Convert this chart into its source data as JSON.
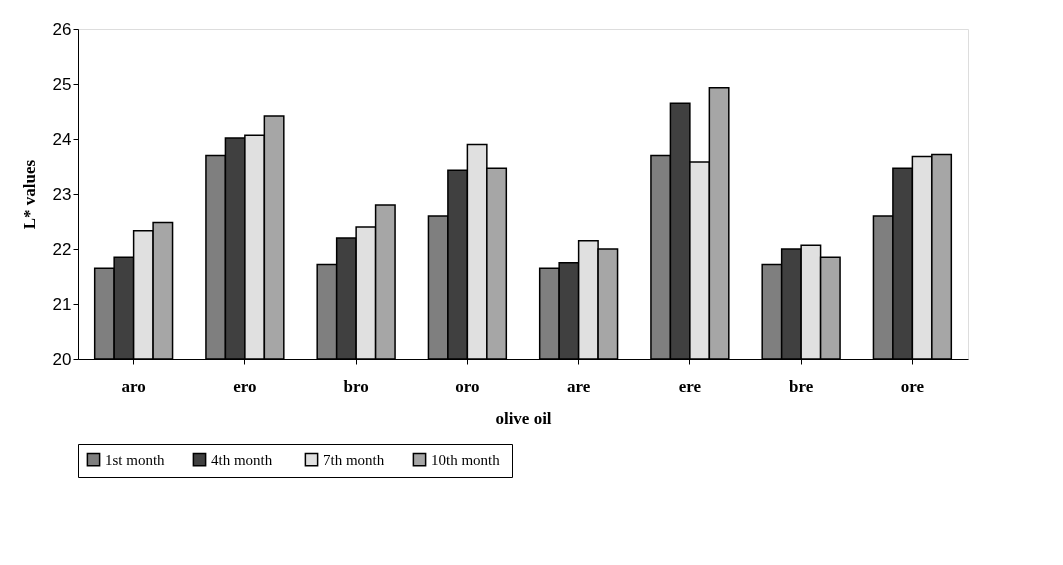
{
  "chart_data": {
    "type": "bar",
    "xlabel": "olive oil",
    "ylabel": "L* values",
    "categories": [
      "aro",
      "ero",
      "bro",
      "oro",
      "are",
      "ere",
      "bre",
      "ore"
    ],
    "series": [
      {
        "name": "1st month",
        "color": "#7f7f7f",
        "values": [
          21.65,
          23.7,
          21.72,
          22.6,
          21.65,
          23.7,
          21.72,
          22.6
        ]
      },
      {
        "name": "4th  month",
        "color": "#404040",
        "values": [
          21.85,
          24.02,
          22.2,
          23.43,
          21.75,
          24.65,
          22.0,
          23.47
        ]
      },
      {
        "name": "7th month",
        "color": "#e0e0e0",
        "values": [
          22.33,
          24.07,
          22.4,
          23.9,
          22.15,
          23.58,
          22.07,
          23.68
        ]
      },
      {
        "name": "10th  month",
        "color": "#a6a6a6",
        "values": [
          22.48,
          24.42,
          22.8,
          23.47,
          22.0,
          24.93,
          21.85,
          23.72
        ]
      }
    ],
    "ylim": [
      20,
      26
    ],
    "yticks": [
      20,
      21,
      22,
      23,
      24,
      25,
      26
    ],
    "grid": false,
    "legend": "bottom"
  }
}
